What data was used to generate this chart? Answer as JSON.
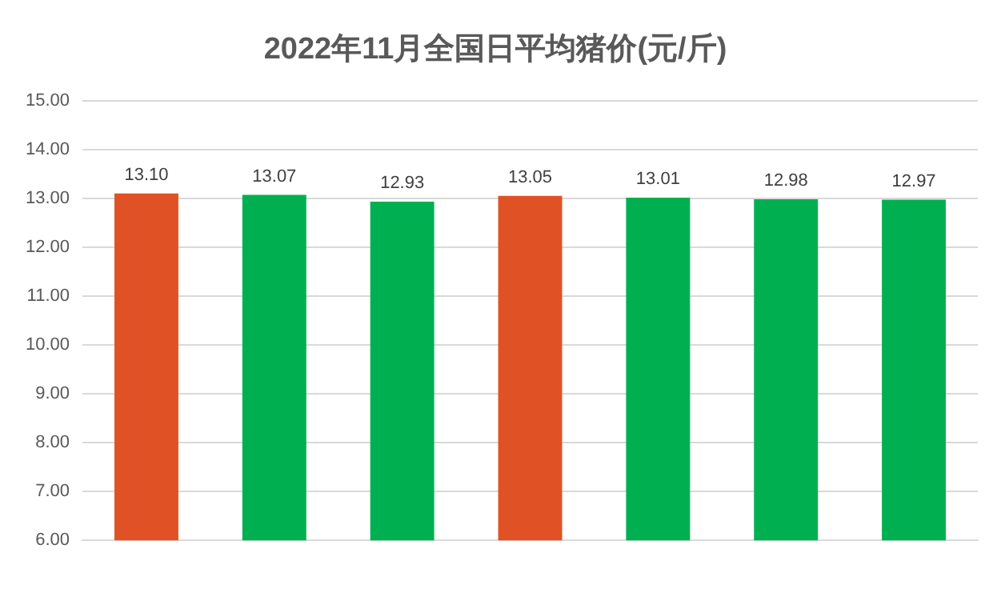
{
  "chart_data": {
    "type": "bar",
    "title": "2022年11月全国日平均猪价(元/斤)",
    "categories": [
      null,
      null,
      null,
      null,
      null,
      null,
      null
    ],
    "values": [
      13.1,
      13.07,
      12.93,
      13.05,
      13.01,
      12.98,
      12.97
    ],
    "value_labels": [
      "13.10",
      "13.07",
      "12.93",
      "13.05",
      "13.01",
      "12.98",
      "12.97"
    ],
    "colors": [
      "#e05225",
      "#00b050",
      "#00b050",
      "#e05225",
      "#00b050",
      "#00b050",
      "#00b050"
    ],
    "ylim": [
      6,
      15
    ],
    "yticks": [
      {
        "value": 6,
        "label": "6.00"
      },
      {
        "value": 7,
        "label": "7.00"
      },
      {
        "value": 8,
        "label": "8.00"
      },
      {
        "value": 9,
        "label": "9.00"
      },
      {
        "value": 10,
        "label": "10.00"
      },
      {
        "value": 11,
        "label": "11.00"
      },
      {
        "value": 12,
        "label": "12.00"
      },
      {
        "value": 13,
        "label": "13.00"
      },
      {
        "value": 14,
        "label": "14.00"
      },
      {
        "value": 15,
        "label": "15.00"
      }
    ],
    "grid": "y",
    "legend": false
  }
}
